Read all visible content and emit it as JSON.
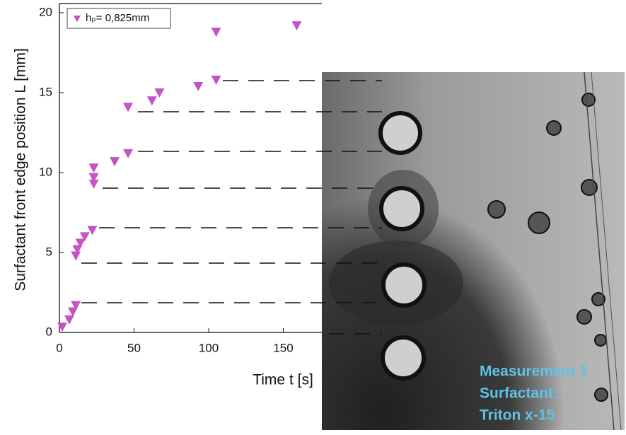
{
  "chart_data": {
    "type": "scatter",
    "x_label": "Time t [s]",
    "y_label": "Surfactant front edge position L [mm]",
    "series": [
      {
        "name": "hₚ= 0,825mm",
        "color": "#c453c4",
        "x": [
          1.9,
          6.6,
          9,
          11,
          11,
          12,
          14,
          17,
          22,
          23,
          23,
          23,
          37,
          46,
          46,
          62,
          67,
          93,
          105,
          105,
          159
        ],
        "values": [
          0.35,
          0.8,
          1.3,
          1.7,
          4.8,
          5.2,
          5.6,
          6.0,
          6.4,
          9.3,
          9.7,
          10.3,
          10.7,
          11.2,
          14.1,
          14.5,
          15.0,
          15.4,
          15.8,
          18.8,
          19.2
        ]
      }
    ],
    "xlim": [
      0,
      200
    ],
    "xticks": [
      0,
      50,
      100,
      150
    ],
    "ylim": [
      0,
      20
    ],
    "yticks": [
      0,
      5,
      10,
      15,
      20
    ],
    "legend": "upper-left",
    "annotations": [
      "Measurement 1",
      "Surfactant:",
      "Triton x-15"
    ]
  }
}
